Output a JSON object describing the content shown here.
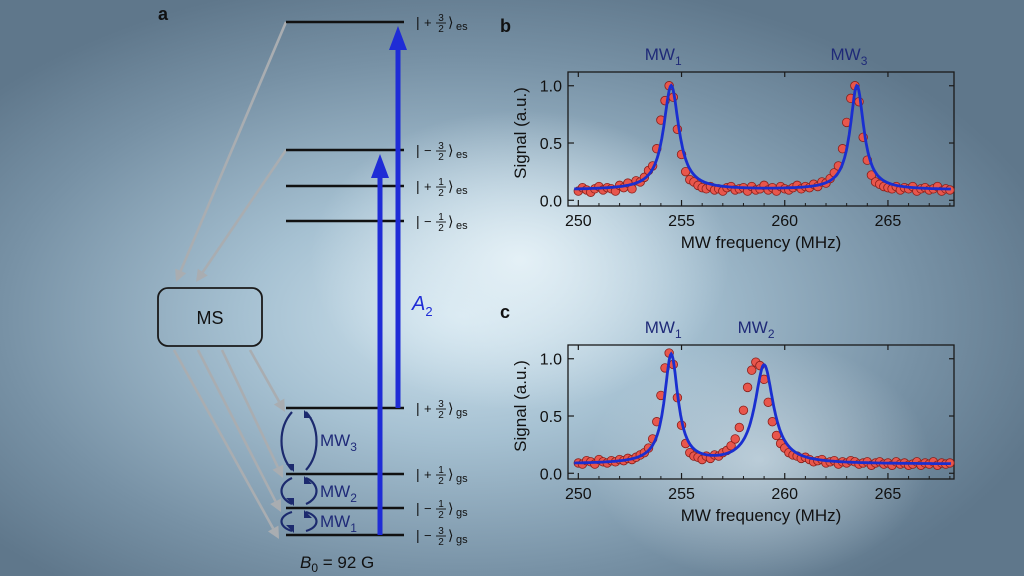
{
  "figure": {
    "panel_labels": {
      "a": "a",
      "b": "b",
      "c": "c"
    },
    "colors": {
      "level_line": "#111111",
      "blue_arrow": "#1f2cd6",
      "mw_arc": "#1c2a6e",
      "mw_label": "#1f2a78",
      "gray_arrow": "#a9adb1",
      "fit_line": "#1a2fd0",
      "data_point_fill": "#e8564c",
      "data_point_edge": "#8a1f1a"
    }
  },
  "level_diagram": {
    "levels": [
      {
        "id": "es_p3",
        "sign": "+",
        "num": "3",
        "den": "2",
        "sub": "es"
      },
      {
        "id": "es_m3",
        "sign": "−",
        "num": "3",
        "den": "2",
        "sub": "es"
      },
      {
        "id": "es_p1",
        "sign": "+",
        "num": "1",
        "den": "2",
        "sub": "es"
      },
      {
        "id": "es_m1",
        "sign": "−",
        "num": "1",
        "den": "2",
        "sub": "es"
      },
      {
        "id": "gs_p3",
        "sign": "+",
        "num": "3",
        "den": "2",
        "sub": "gs"
      },
      {
        "id": "gs_p1",
        "sign": "+",
        "num": "1",
        "den": "2",
        "sub": "gs"
      },
      {
        "id": "gs_m1",
        "sign": "−",
        "num": "1",
        "den": "2",
        "sub": "gs"
      },
      {
        "id": "gs_m3",
        "sign": "−",
        "num": "3",
        "den": "2",
        "sub": "gs"
      }
    ],
    "ket_left": "|",
    "ket_right": "⟩",
    "ms_box_label": "MS",
    "transition_label": {
      "main": "A",
      "sub": "2"
    },
    "mw_labels": [
      {
        "main": "MW",
        "sub": "3"
      },
      {
        "main": "MW",
        "sub": "2"
      },
      {
        "main": "MW",
        "sub": "1"
      }
    ],
    "field_label": {
      "symbol": "B",
      "sub": "0",
      "value": " = 92 G"
    }
  },
  "chart_data": [
    {
      "panel": "b",
      "type": "scatter",
      "xlabel": "MW frequency (MHz)",
      "ylabel": "Signal (a.u.)",
      "xlim": [
        249.5,
        268.2
      ],
      "ylim": [
        -0.05,
        1.12
      ],
      "xticks": [
        250,
        255,
        260,
        265
      ],
      "yticks": [
        0.0,
        0.5,
        1.0
      ],
      "ytick_labels": [
        "0.0",
        "0.5",
        "1.0"
      ],
      "peak_labels": [
        {
          "main": "MW",
          "sub": "1",
          "x": 254.5
        },
        {
          "main": "MW",
          "sub": "3",
          "x": 263.5
        }
      ],
      "fit": {
        "baseline": 0.09,
        "peaks": [
          {
            "x0": 254.5,
            "amp": 0.91,
            "gamma": 0.45
          },
          {
            "x0": 263.5,
            "amp": 0.91,
            "gamma": 0.4
          }
        ]
      },
      "series": [
        {
          "name": "data",
          "x": [
            250.0,
            250.2,
            250.4,
            250.6,
            250.8,
            251.0,
            251.2,
            251.4,
            251.6,
            251.8,
            252.0,
            252.2,
            252.4,
            252.6,
            252.8,
            253.0,
            253.2,
            253.4,
            253.6,
            253.8,
            254.0,
            254.2,
            254.4,
            254.6,
            254.8,
            255.0,
            255.2,
            255.4,
            255.6,
            255.8,
            256.0,
            256.2,
            256.4,
            256.6,
            256.8,
            257.0,
            257.2,
            257.4,
            257.6,
            257.8,
            258.0,
            258.2,
            258.4,
            258.6,
            258.8,
            259.0,
            259.2,
            259.4,
            259.6,
            259.8,
            260.0,
            260.2,
            260.4,
            260.6,
            260.8,
            261.0,
            261.2,
            261.4,
            261.6,
            261.8,
            262.0,
            262.2,
            262.4,
            262.6,
            262.8,
            263.0,
            263.2,
            263.4,
            263.6,
            263.8,
            264.0,
            264.2,
            264.4,
            264.6,
            264.8,
            265.0,
            265.2,
            265.4,
            265.6,
            265.8,
            266.0,
            266.2,
            266.4,
            266.6,
            266.8,
            267.0,
            267.2,
            267.4,
            267.6,
            267.8,
            268.0
          ],
          "y": [
            0.08,
            0.11,
            0.09,
            0.07,
            0.1,
            0.12,
            0.09,
            0.11,
            0.1,
            0.08,
            0.13,
            0.11,
            0.15,
            0.1,
            0.17,
            0.16,
            0.2,
            0.26,
            0.3,
            0.45,
            0.7,
            0.87,
            1.0,
            0.9,
            0.62,
            0.4,
            0.25,
            0.18,
            0.16,
            0.13,
            0.11,
            0.1,
            0.12,
            0.09,
            0.1,
            0.08,
            0.11,
            0.12,
            0.09,
            0.1,
            0.11,
            0.08,
            0.12,
            0.09,
            0.1,
            0.13,
            0.09,
            0.11,
            0.08,
            0.12,
            0.1,
            0.09,
            0.11,
            0.13,
            0.1,
            0.12,
            0.11,
            0.14,
            0.12,
            0.16,
            0.15,
            0.19,
            0.24,
            0.3,
            0.45,
            0.68,
            0.89,
            1.0,
            0.86,
            0.55,
            0.35,
            0.22,
            0.16,
            0.14,
            0.12,
            0.11,
            0.1,
            0.12,
            0.09,
            0.11,
            0.1,
            0.12,
            0.08,
            0.1,
            0.11,
            0.09,
            0.1,
            0.12,
            0.08,
            0.1,
            0.09
          ]
        }
      ]
    },
    {
      "panel": "c",
      "type": "scatter",
      "xlabel": "MW frequency (MHz)",
      "ylabel": "Signal (a.u.)",
      "xlim": [
        249.5,
        268.2
      ],
      "ylim": [
        -0.05,
        1.12
      ],
      "xticks": [
        250,
        255,
        260,
        265
      ],
      "yticks": [
        0.0,
        0.5,
        1.0
      ],
      "ytick_labels": [
        "0.0",
        "0.5",
        "1.0"
      ],
      "peak_labels": [
        {
          "main": "MW",
          "sub": "1",
          "x": 254.5
        },
        {
          "main": "MW",
          "sub": "2",
          "x": 259.0
        }
      ],
      "fit": {
        "baseline": 0.08,
        "peaks": [
          {
            "x0": 254.5,
            "amp": 0.95,
            "gamma": 0.4
          },
          {
            "x0": 259.0,
            "amp": 0.86,
            "gamma": 0.55
          }
        ]
      },
      "series": [
        {
          "name": "data",
          "x": [
            250.0,
            250.2,
            250.4,
            250.6,
            250.8,
            251.0,
            251.2,
            251.4,
            251.6,
            251.8,
            252.0,
            252.2,
            252.4,
            252.6,
            252.8,
            253.0,
            253.2,
            253.4,
            253.6,
            253.8,
            254.0,
            254.2,
            254.4,
            254.6,
            254.8,
            255.0,
            255.2,
            255.4,
            255.6,
            255.8,
            256.0,
            256.2,
            256.4,
            256.6,
            256.8,
            257.0,
            257.2,
            257.4,
            257.6,
            257.8,
            258.0,
            258.2,
            258.4,
            258.6,
            258.8,
            259.0,
            259.2,
            259.4,
            259.6,
            259.8,
            260.0,
            260.2,
            260.4,
            260.6,
            260.8,
            261.0,
            261.2,
            261.4,
            261.6,
            261.8,
            262.0,
            262.2,
            262.4,
            262.6,
            262.8,
            263.0,
            263.2,
            263.4,
            263.6,
            263.8,
            264.0,
            264.2,
            264.4,
            264.6,
            264.8,
            265.0,
            265.2,
            265.4,
            265.6,
            265.8,
            266.0,
            266.2,
            266.4,
            266.6,
            266.8,
            267.0,
            267.2,
            267.4,
            267.6,
            267.8,
            268.0
          ],
          "y": [
            0.09,
            0.08,
            0.11,
            0.1,
            0.08,
            0.12,
            0.1,
            0.09,
            0.11,
            0.1,
            0.12,
            0.11,
            0.13,
            0.12,
            0.14,
            0.16,
            0.18,
            0.22,
            0.3,
            0.45,
            0.68,
            0.92,
            1.05,
            0.95,
            0.66,
            0.42,
            0.26,
            0.18,
            0.15,
            0.14,
            0.12,
            0.15,
            0.13,
            0.16,
            0.15,
            0.18,
            0.2,
            0.24,
            0.3,
            0.4,
            0.55,
            0.75,
            0.9,
            0.97,
            0.94,
            0.82,
            0.62,
            0.45,
            0.33,
            0.26,
            0.22,
            0.18,
            0.16,
            0.15,
            0.13,
            0.14,
            0.12,
            0.1,
            0.11,
            0.12,
            0.09,
            0.1,
            0.11,
            0.08,
            0.1,
            0.09,
            0.11,
            0.1,
            0.08,
            0.09,
            0.1,
            0.07,
            0.09,
            0.1,
            0.08,
            0.09,
            0.07,
            0.1,
            0.08,
            0.09,
            0.07,
            0.08,
            0.1,
            0.07,
            0.09,
            0.08,
            0.1,
            0.07,
            0.09,
            0.08,
            0.09
          ]
        }
      ]
    }
  ]
}
